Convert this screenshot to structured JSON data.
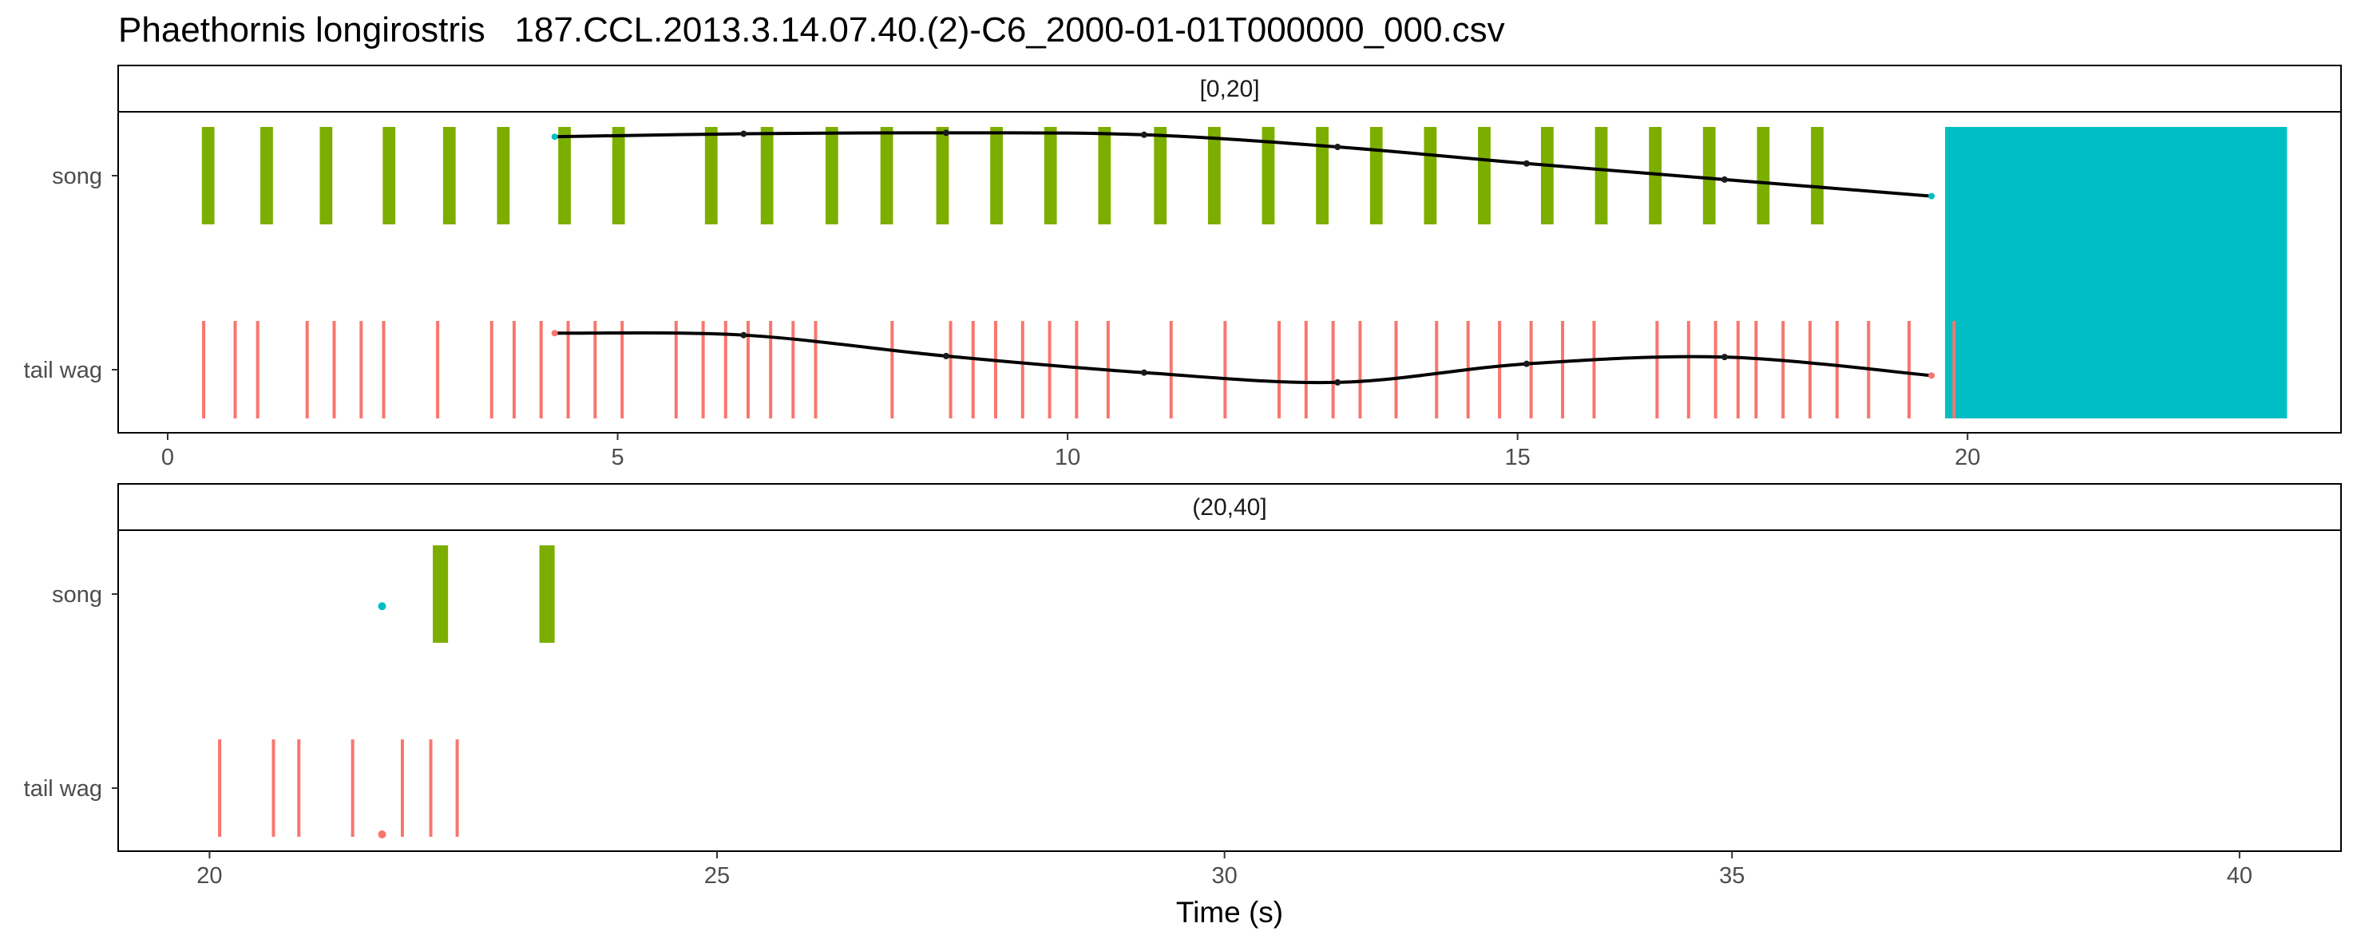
{
  "title": "Phaethornis longirostris   187.CCL.2013.3.14.07.40.(2)-C6_2000-01-01T000000_000.csv",
  "chart_data": {
    "type": "ethogram",
    "xlabel": "Time (s)",
    "categories": [
      "song",
      "tail wag"
    ],
    "colors": {
      "song": "#7CAE00",
      "tail_wag": "#F8766D",
      "cyan": "#00BFC4",
      "line": "#000000"
    },
    "panels": [
      {
        "strip": "[0,20]",
        "xlim": [
          -0.55,
          24.15
        ],
        "xticks": [
          0,
          5,
          10,
          15,
          20
        ],
        "song_events": [
          [
            0.38,
            0.52
          ],
          [
            1.03,
            1.17
          ],
          [
            1.69,
            1.83
          ],
          [
            2.39,
            2.53
          ],
          [
            3.06,
            3.2
          ],
          [
            3.66,
            3.8
          ],
          [
            4.34,
            4.48
          ],
          [
            4.94,
            5.08
          ],
          [
            5.97,
            6.11
          ],
          [
            6.59,
            6.73
          ],
          [
            7.31,
            7.45
          ],
          [
            7.92,
            8.06
          ],
          [
            8.54,
            8.68
          ],
          [
            9.14,
            9.28
          ],
          [
            9.74,
            9.88
          ],
          [
            10.34,
            10.48
          ],
          [
            10.96,
            11.1
          ],
          [
            11.56,
            11.7
          ],
          [
            12.16,
            12.3
          ],
          [
            12.76,
            12.9
          ],
          [
            13.36,
            13.5
          ],
          [
            13.96,
            14.1
          ],
          [
            14.56,
            14.7
          ],
          [
            15.26,
            15.4
          ],
          [
            15.86,
            16.0
          ],
          [
            16.46,
            16.6
          ],
          [
            17.06,
            17.2
          ],
          [
            17.66,
            17.8
          ],
          [
            18.26,
            18.4
          ]
        ],
        "tail_wag_events": [
          0.4,
          0.75,
          1.0,
          1.55,
          1.85,
          2.15,
          2.4,
          3.0,
          3.6,
          3.85,
          4.15,
          4.45,
          4.75,
          5.05,
          5.65,
          5.95,
          6.2,
          6.45,
          6.7,
          6.95,
          7.2,
          8.05,
          8.7,
          8.95,
          9.2,
          9.5,
          9.8,
          10.1,
          10.45,
          11.15,
          11.75,
          12.35,
          12.65,
          12.95,
          13.25,
          13.65,
          14.1,
          14.45,
          14.8,
          15.15,
          15.5,
          15.85,
          16.55,
          16.9,
          17.2,
          17.45,
          17.65,
          17.95,
          18.25,
          18.55,
          18.9,
          19.35,
          19.85
        ],
        "cyan_block": [
          19.75,
          23.55
        ],
        "song_line": {
          "x": [
            4.3,
            6.4,
            8.65,
            10.85,
            13.0,
            15.1,
            17.3,
            19.6
          ],
          "y": [
            0.8,
            0.86,
            0.88,
            0.84,
            0.59,
            0.25,
            -0.08,
            -0.42
          ]
        },
        "tail_wag_line": {
          "x": [
            4.3,
            6.4,
            8.65,
            10.85,
            13.0,
            15.1,
            17.3,
            19.6
          ],
          "y": [
            0.75,
            0.71,
            0.28,
            -0.06,
            -0.26,
            0.12,
            0.26,
            -0.12
          ]
        }
      },
      {
        "strip": "(20,40]",
        "xlim": [
          19.1,
          41.0
        ],
        "xticks": [
          20,
          25,
          30,
          35,
          40
        ],
        "song_events": [
          [
            22.2,
            22.35
          ],
          [
            23.25,
            23.4
          ]
        ],
        "tail_wag_events": [
          20.1,
          20.63,
          20.88,
          21.41,
          21.9,
          22.18,
          22.44
        ],
        "song_point": {
          "x": 21.7,
          "y": -0.25
        },
        "tail_wag_point": {
          "x": 21.7,
          "y": -0.95
        }
      }
    ]
  }
}
